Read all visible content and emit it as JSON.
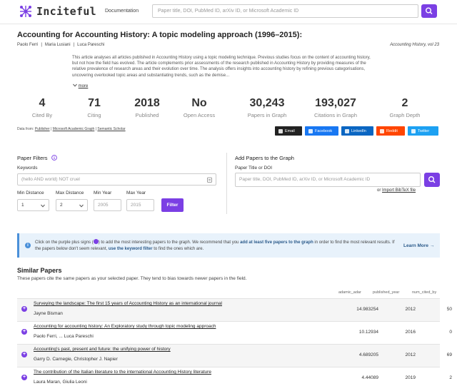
{
  "header": {
    "brand": "Inciteful",
    "doc_link": "Documentation",
    "search_placeholder": "Paper title, DOI, PubMed ID, arXiv ID, or Microsoft Academic ID"
  },
  "paper": {
    "title": "Accounting for Accounting History: A topic modeling approach (1996–2015):",
    "authors": [
      "Paolo Ferri",
      "|",
      "Maria Lusiani",
      "|",
      "Luca Pareschi"
    ],
    "journal": "Accounting History, vol 23",
    "abstract": "This article analyses all articles published in Accounting History using a topic modeling technique. Previous studies focus on the content of accounting history, but not how the field has evolved. The article complements prior assessments of the research published in Accounting History by providing measures of the relative prevalence of research areas and their evolution over time. The analysis offers insights into accounting history by refining previous categorisations, uncovering overlooked topic areas and substantiating trends, such as the demise...",
    "more": "more"
  },
  "stats": [
    {
      "value": "4",
      "label": "Cited By"
    },
    {
      "value": "71",
      "label": "Citing"
    },
    {
      "value": "2018",
      "label": "Published"
    },
    {
      "value": "No",
      "label": "Open Access"
    },
    {
      "value": "30,243",
      "label": "Papers in Graph"
    },
    {
      "value": "193,027",
      "label": "Citations in Graph"
    },
    {
      "value": "2",
      "label": "Graph Depth"
    }
  ],
  "data_from": {
    "prefix": "Data from:",
    "sources": [
      "Publisher",
      "|",
      "Microsoft Academic Graph",
      "|",
      "Semantic Scholar"
    ]
  },
  "share": [
    {
      "label": "Email",
      "color": "#222222"
    },
    {
      "label": "Facebook",
      "color": "#1877f2"
    },
    {
      "label": "LinkedIn",
      "color": "#0a66c2"
    },
    {
      "label": "Reddit",
      "color": "#ff4500"
    },
    {
      "label": "Twitter",
      "color": "#1da1f2"
    }
  ],
  "filters": {
    "heading": "Paper Filters",
    "keywords_label": "Keywords",
    "keywords_placeholder": "(hello AND world) NOT cruel",
    "min_distance_label": "Min Distance",
    "max_distance_label": "Max Distance",
    "min_year_label": "Min Year",
    "max_year_label": "Max Year",
    "min_distance": "1",
    "max_distance": "2",
    "min_year_placeholder": "2005",
    "max_year_placeholder": "2015",
    "button": "Filter"
  },
  "add_papers": {
    "heading": "Add Papers to the Graph",
    "label": "Paper Title or DOI",
    "placeholder": "Paper title, DOI, PubMed ID, arXiv ID, or Microsoft Academic ID",
    "or": "or",
    "bibtex": "Import BibTeX file"
  },
  "info": {
    "t1": "Click on the purple plus signs (",
    "t2": ") to add the most interesting papers to the graph. We recommend that you ",
    "t3": "add at least five papers to the graph",
    "t4": " in order to find the most relevant results. If the papers below don't seem relevant, ",
    "t5": "use the keyword filter",
    "t6": " to find the ones which are.",
    "learn_more": "Learn More →"
  },
  "similar": {
    "heading": "Similar Papers",
    "subheading": "These papers cite the same papers as your selected paper. They tend to bias towards newer papers in the field.",
    "columns": [
      "adamic_adar",
      "published_year",
      "num_cited_by"
    ],
    "rows": [
      {
        "title": "Surveying the landscape: The first 15 years of Accounting History as an international journal",
        "authors": "Jayne Bisman",
        "adamic": "14.983254",
        "year": "2012",
        "cited": "50"
      },
      {
        "title": "Accounting for accounting history: An Exploratory study through topic modeling approach",
        "authors": "Paolo Ferri, ... Luca Pareschi",
        "adamic": "10.12934",
        "year": "2016",
        "cited": "0"
      },
      {
        "title": "Accounting's past, present and future: the unifying power of history",
        "authors": "Garry D. Carnegie, Christopher J. Napier",
        "adamic": "4.689205",
        "year": "2012",
        "cited": "69"
      },
      {
        "title": "The contribution of the Italian literature to the international Accounting History literature",
        "authors": "Laura Maran, Giulia Leoni",
        "adamic": "4.44089",
        "year": "2019",
        "cited": "2"
      }
    ]
  }
}
